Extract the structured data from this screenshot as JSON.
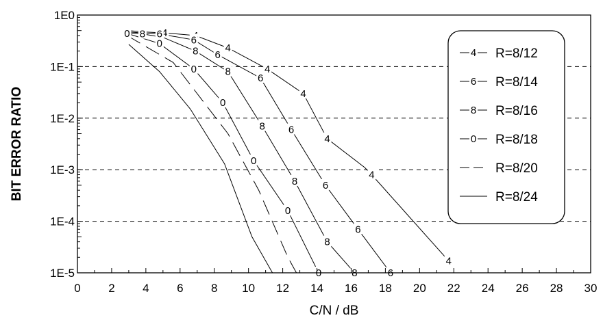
{
  "chart_data": {
    "type": "line",
    "title": "",
    "xlabel": "C/N  / dB",
    "ylabel": "BIT ERROR RATIO",
    "xlim": [
      0,
      30
    ],
    "ylim": [
      1e-05,
      1
    ],
    "yscale": "log",
    "x_ticks": [
      0,
      2,
      4,
      6,
      8,
      10,
      12,
      14,
      16,
      18,
      20,
      22,
      24,
      26,
      28,
      30
    ],
    "y_ticks": [
      {
        "value": 1,
        "label": "1E0"
      },
      {
        "value": 0.1,
        "label": "1E-1"
      },
      {
        "value": 0.01,
        "label": "1E-2"
      },
      {
        "value": 0.001,
        "label": "1E-3"
      },
      {
        "value": 0.0001,
        "label": "1E-4"
      },
      {
        "value": 1e-05,
        "label": "1E-5"
      }
    ],
    "grid": "horizontal dashed",
    "legend": "right",
    "series": [
      {
        "name": "R=8/12",
        "marker": "4",
        "line": "solid",
        "points": [
          [
            3,
            0.5
          ],
          [
            3.9,
            0.47
          ],
          [
            5.1,
            0.45
          ],
          [
            6.9,
            0.4
          ],
          [
            8.8,
            0.23
          ],
          [
            11.1,
            0.09
          ],
          [
            13.2,
            0.03
          ],
          [
            14.6,
            0.004
          ],
          [
            16.8,
            0.0011
          ],
          [
            17.2,
            0.0008
          ],
          [
            21.7,
            1.7e-05
          ]
        ],
        "marker_x": [
          5.1,
          6.9,
          8.8,
          11.1,
          13.2,
          14.6,
          17.2,
          21.7
        ]
      },
      {
        "name": "R=8/14",
        "marker": "6",
        "line": "solid",
        "points": [
          [
            3,
            0.47
          ],
          [
            3.8,
            0.45
          ],
          [
            4.8,
            0.43
          ],
          [
            6.8,
            0.33
          ],
          [
            8.2,
            0.17
          ],
          [
            10.7,
            0.06
          ],
          [
            12.5,
            0.006
          ],
          [
            14.5,
            0.0005
          ],
          [
            16.4,
            7e-05
          ],
          [
            18.3,
            1e-05
          ]
        ],
        "marker_x": [
          4.8,
          6.8,
          8.2,
          10.7,
          12.5,
          14.5,
          16.4,
          18.3
        ]
      },
      {
        "name": "R=8/16",
        "marker": "8",
        "line": "solid",
        "points": [
          [
            3,
            0.45
          ],
          [
            3.8,
            0.43
          ],
          [
            5,
            0.37
          ],
          [
            6.9,
            0.2
          ],
          [
            8.8,
            0.08
          ],
          [
            10.8,
            0.007
          ],
          [
            12.7,
            0.0006
          ],
          [
            14.6,
            4e-05
          ],
          [
            16.2,
            1e-05
          ]
        ],
        "marker_x": [
          3.8,
          6.9,
          8.8,
          10.8,
          12.7,
          14.6,
          16.2
        ]
      },
      {
        "name": "R=8/18",
        "marker": "0",
        "line": "solid",
        "points": [
          [
            2.9,
            0.44
          ],
          [
            4.8,
            0.28
          ],
          [
            6.8,
            0.09
          ],
          [
            8.5,
            0.02
          ],
          [
            10.3,
            0.0015
          ],
          [
            12.3,
            0.00016
          ],
          [
            14.1,
            1e-05
          ]
        ],
        "marker_x": [
          2.9,
          4.8,
          6.8,
          8.5,
          10.3,
          12.3,
          14.1
        ]
      },
      {
        "name": "R=8/20",
        "marker": "",
        "line": "long-dash",
        "points": [
          [
            2.9,
            0.4
          ],
          [
            5.6,
            0.12
          ],
          [
            8.8,
            0.005
          ],
          [
            10.6,
            0.0004
          ],
          [
            12.3,
            2e-05
          ],
          [
            12.8,
            1e-05
          ]
        ],
        "marker_x": []
      },
      {
        "name": "R=8/24",
        "marker": "",
        "line": "solid",
        "points": [
          [
            3,
            0.27
          ],
          [
            4.8,
            0.08
          ],
          [
            6.6,
            0.015
          ],
          [
            8.6,
            0.0013
          ],
          [
            10.2,
            5e-05
          ],
          [
            11.4,
            1e-05
          ]
        ],
        "marker_x": []
      }
    ]
  }
}
